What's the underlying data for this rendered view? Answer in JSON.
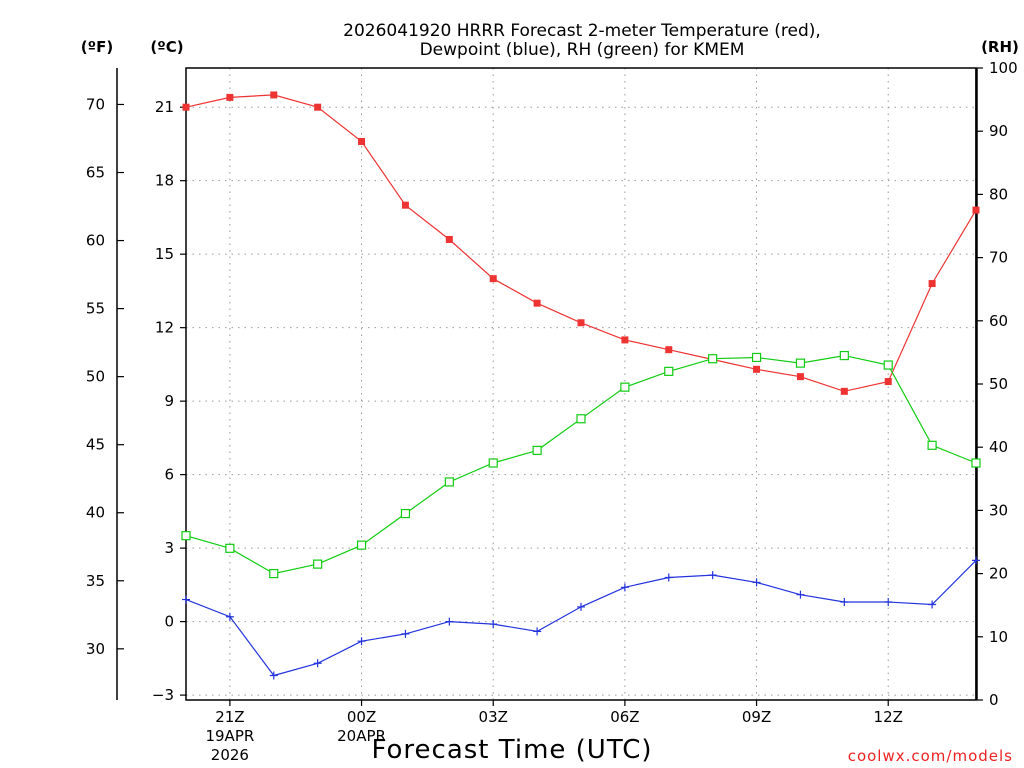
{
  "chart_data": {
    "type": "line",
    "title_line1": "2026041920 HRRR Forecast 2-meter Temperature (red),",
    "title_line2": "Dewpoint (blue), RH (green) for KMEM",
    "xlabel": "Forecast Time (UTC)",
    "credit": "coolwx.com/models",
    "axis_headers": {
      "f": "(ºF)",
      "c": "(ºC)",
      "rh": "(RH)"
    },
    "x_hours": [
      0,
      1,
      2,
      3,
      4,
      5,
      6,
      7,
      8,
      9,
      10,
      11,
      12,
      13,
      14,
      15,
      16,
      17,
      18
    ],
    "x_ticks": [
      {
        "hour": 1,
        "label": "21Z",
        "date": "19APR",
        "year": "2026"
      },
      {
        "hour": 4,
        "label": "00Z",
        "date": "20APR",
        "year": ""
      },
      {
        "hour": 7,
        "label": "03Z",
        "date": "",
        "year": ""
      },
      {
        "hour": 10,
        "label": "06Z",
        "date": "",
        "year": ""
      },
      {
        "hour": 13,
        "label": "09Z",
        "date": "",
        "year": ""
      },
      {
        "hour": 16,
        "label": "12Z",
        "date": "",
        "year": ""
      }
    ],
    "c_axis": {
      "ylim": [
        -3.2,
        22.6
      ],
      "ticks": [
        -3,
        0,
        3,
        6,
        9,
        12,
        15,
        18,
        21
      ]
    },
    "f_axis": {
      "ticks": [
        30,
        35,
        40,
        45,
        50,
        55,
        60,
        65,
        70
      ]
    },
    "rh_axis": {
      "ylim": [
        0,
        100
      ],
      "ticks": [
        0,
        10,
        20,
        30,
        40,
        50,
        60,
        70,
        80,
        90,
        100
      ]
    },
    "series": [
      {
        "name": "2-meter Temperature",
        "color": "#ee3333",
        "marker": "filled-square",
        "axis": "c",
        "values": [
          21.0,
          21.4,
          21.5,
          21.0,
          19.6,
          17.0,
          15.6,
          14.0,
          13.0,
          12.2,
          11.5,
          11.1,
          10.7,
          10.3,
          10.0,
          9.4,
          9.8,
          13.8,
          16.8
        ]
      },
      {
        "name": "Dewpoint",
        "color": "#2233dd",
        "marker": "plus",
        "axis": "c",
        "values": [
          0.9,
          0.2,
          -2.2,
          -1.7,
          -0.8,
          -0.5,
          0.0,
          -0.1,
          -0.4,
          0.6,
          1.4,
          1.8,
          1.9,
          1.6,
          1.1,
          0.8,
          0.8,
          0.7,
          2.5
        ]
      },
      {
        "name": "RH",
        "color": "#11cc11",
        "marker": "open-square",
        "axis": "rh",
        "values": [
          26,
          24,
          20,
          21.5,
          24.5,
          29.5,
          34.5,
          37.5,
          39.5,
          44.5,
          49.5,
          52,
          54,
          54.2,
          53.3,
          54.5,
          53,
          40.3,
          37.5
        ]
      }
    ]
  }
}
